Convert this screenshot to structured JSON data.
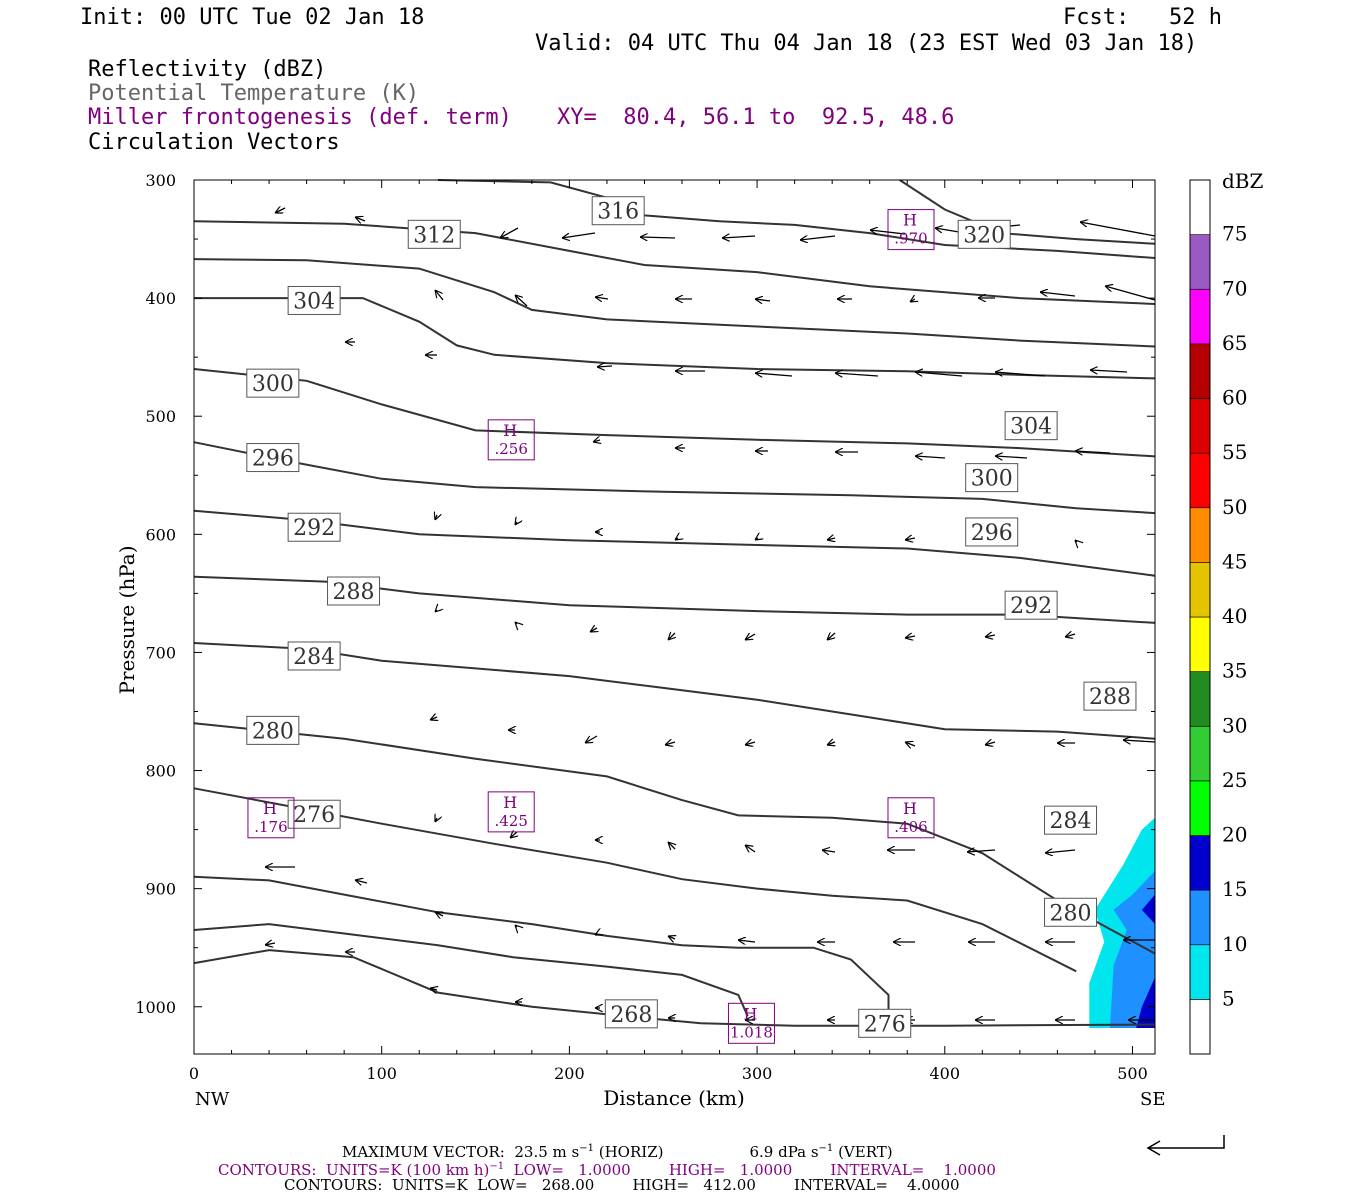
{
  "header": {
    "init": "Init: 00 UTC Tue 02 Jan 18",
    "fcst": "Fcst:   52 h",
    "valid": "Valid: 04 UTC Thu 04 Jan 18 (23 EST Wed 03 Jan 18)",
    "fields": [
      "Reflectivity (dBZ)",
      "Potential Temperature (K)",
      "Miller frontogenesis (def. term)",
      "Circulation Vectors"
    ],
    "xy": "XY=  80.4, 56.1 to  92.5, 48.6"
  },
  "colors": {
    "contour": "#333333",
    "highs": "#800080",
    "dbz": [
      "#ffffff",
      "#00e5ee",
      "#1e90ff",
      "#0000cd",
      "#00ff00",
      "#32cd32",
      "#228b22",
      "#ffff00",
      "#e6c300",
      "#ff8c00",
      "#ff0000",
      "#dc0000",
      "#b40000",
      "#ff00ff",
      "#9b59c4",
      "#ffffff"
    ]
  },
  "chart_data": {
    "type": "contour",
    "xlabel": "Distance (km)",
    "ylabel": "Pressure (hPa)",
    "xlim": [
      0,
      512
    ],
    "ylim": [
      300,
      1040
    ],
    "xticks": [
      0,
      100,
      200,
      300,
      400,
      500
    ],
    "yticks": [
      300,
      400,
      500,
      600,
      700,
      800,
      900,
      1000
    ],
    "x_end_labels": [
      "NW",
      "SE"
    ],
    "colorbar": {
      "unit": "dBZ",
      "levels": [
        5,
        10,
        15,
        20,
        25,
        30,
        35,
        40,
        45,
        50,
        55,
        60,
        65,
        70,
        75
      ]
    },
    "theta_contours": [
      {
        "value": 320,
        "label": "320",
        "label_at": [
          421,
          346
        ],
        "points": [
          [
            376,
            300
          ],
          [
            400,
            325
          ],
          [
            430,
            345
          ],
          [
            470,
            350
          ],
          [
            512,
            354
          ]
        ]
      },
      {
        "value": 316,
        "label": "316",
        "label_at": [
          226,
          326
        ],
        "points": [
          [
            130,
            300
          ],
          [
            190,
            302
          ],
          [
            220,
            315
          ],
          [
            240,
            330
          ],
          [
            280,
            335
          ],
          [
            320,
            338
          ],
          [
            360,
            345
          ],
          [
            400,
            355
          ],
          [
            460,
            360
          ],
          [
            512,
            366
          ]
        ]
      },
      {
        "value": 312,
        "label": "312",
        "label_at": [
          128,
          346
        ],
        "points": [
          [
            0,
            335
          ],
          [
            80,
            337
          ],
          [
            150,
            345
          ],
          [
            200,
            360
          ],
          [
            240,
            372
          ],
          [
            300,
            378
          ],
          [
            360,
            390
          ],
          [
            440,
            400
          ],
          [
            512,
            405
          ]
        ]
      },
      {
        "value": 308,
        "label": "",
        "points": [
          [
            0,
            367
          ],
          [
            60,
            368
          ],
          [
            120,
            375
          ],
          [
            160,
            395
          ],
          [
            180,
            410
          ],
          [
            220,
            418
          ],
          [
            300,
            424
          ],
          [
            380,
            430
          ],
          [
            440,
            436
          ],
          [
            512,
            441
          ]
        ]
      },
      {
        "value": 304,
        "label": "304",
        "label_at": [
          64,
          402
        ],
        "points": [
          [
            0,
            400
          ],
          [
            90,
            400
          ],
          [
            120,
            420
          ],
          [
            140,
            440
          ],
          [
            160,
            448
          ],
          [
            220,
            455
          ],
          [
            300,
            460
          ],
          [
            380,
            462
          ],
          [
            440,
            465
          ],
          [
            512,
            468
          ]
        ]
      },
      {
        "value": 304,
        "label": "304",
        "label_at": [
          446,
          508
        ],
        "points": [
          [
            0,
            460
          ],
          [
            60,
            470
          ],
          [
            100,
            490
          ],
          [
            150,
            512
          ],
          [
            220,
            516
          ],
          [
            300,
            520
          ],
          [
            380,
            523
          ],
          [
            440,
            527
          ],
          [
            512,
            534
          ]
        ]
      },
      {
        "value": 300,
        "label": "300",
        "label_at": [
          42,
          472
        ],
        "points": []
      },
      {
        "value": 300,
        "label": "300",
        "label_at": [
          425,
          552
        ],
        "points": [
          [
            0,
            522
          ],
          [
            50,
            538
          ],
          [
            100,
            553
          ],
          [
            150,
            560
          ],
          [
            250,
            564
          ],
          [
            350,
            567
          ],
          [
            420,
            570
          ],
          [
            470,
            578
          ],
          [
            512,
            582
          ]
        ]
      },
      {
        "value": 296,
        "label": "296",
        "label_at": [
          42,
          535
        ],
        "points": []
      },
      {
        "value": 296,
        "label": "296",
        "label_at": [
          425,
          598
        ],
        "points": [
          [
            0,
            580
          ],
          [
            60,
            588
          ],
          [
            120,
            600
          ],
          [
            200,
            605
          ],
          [
            300,
            609
          ],
          [
            380,
            612
          ],
          [
            440,
            620
          ],
          [
            512,
            635
          ]
        ]
      },
      {
        "value": 292,
        "label": "292",
        "label_at": [
          64,
          594
        ],
        "points": []
      },
      {
        "value": 292,
        "label": "292",
        "label_at": [
          446,
          660
        ],
        "points": [
          [
            0,
            636
          ],
          [
            70,
            640
          ],
          [
            120,
            650
          ],
          [
            200,
            660
          ],
          [
            300,
            665
          ],
          [
            380,
            668
          ],
          [
            440,
            668
          ],
          [
            512,
            675
          ]
        ]
      },
      {
        "value": 288,
        "label": "288",
        "label_at": [
          85,
          648
        ],
        "points": []
      },
      {
        "value": 288,
        "label": "288",
        "label_at": [
          488,
          737
        ],
        "points": [
          [
            0,
            692
          ],
          [
            60,
            697
          ],
          [
            100,
            707
          ],
          [
            200,
            720
          ],
          [
            250,
            730
          ],
          [
            300,
            740
          ],
          [
            360,
            755
          ],
          [
            400,
            765
          ],
          [
            460,
            767
          ],
          [
            512,
            773
          ]
        ]
      },
      {
        "value": 284,
        "label": "284",
        "label_at": [
          64,
          703
        ],
        "points": []
      },
      {
        "value": 284,
        "label": "284",
        "label_at": [
          467,
          842
        ],
        "points": [
          [
            0,
            760
          ],
          [
            80,
            773
          ],
          [
            150,
            790
          ],
          [
            220,
            805
          ],
          [
            260,
            825
          ],
          [
            290,
            838
          ],
          [
            340,
            840
          ],
          [
            380,
            845
          ],
          [
            420,
            870
          ],
          [
            460,
            910
          ],
          [
            512,
            955
          ]
        ]
      },
      {
        "value": 280,
        "label": "280",
        "label_at": [
          42,
          766
        ],
        "points": []
      },
      {
        "value": 280,
        "label": "280",
        "label_at": [
          467,
          920
        ],
        "points": [
          [
            0,
            815
          ],
          [
            60,
            833
          ],
          [
            100,
            845
          ],
          [
            160,
            862
          ],
          [
            220,
            878
          ],
          [
            260,
            892
          ],
          [
            300,
            900
          ],
          [
            340,
            906
          ],
          [
            380,
            910
          ],
          [
            420,
            930
          ],
          [
            470,
            970
          ]
        ]
      },
      {
        "value": 276,
        "label": "276",
        "label_at": [
          64,
          837
        ],
        "points": []
      },
      {
        "value": 276,
        "label": "276",
        "label_at": [
          368,
          1014
        ],
        "points": [
          [
            0,
            890
          ],
          [
            40,
            893
          ],
          [
            80,
            905
          ],
          [
            130,
            920
          ],
          [
            180,
            930
          ],
          [
            220,
            940
          ],
          [
            260,
            948
          ],
          [
            290,
            950
          ],
          [
            330,
            950
          ],
          [
            350,
            960
          ],
          [
            370,
            990
          ],
          [
            370,
            1015
          ]
        ]
      },
      {
        "value": 272,
        "label": "",
        "points": [
          [
            0,
            935
          ],
          [
            40,
            930
          ],
          [
            80,
            938
          ],
          [
            130,
            948
          ],
          [
            170,
            958
          ],
          [
            220,
            966
          ],
          [
            260,
            973
          ],
          [
            290,
            990
          ],
          [
            295,
            1008
          ]
        ]
      },
      {
        "value": 268,
        "label": "268",
        "label_at": [
          233,
          1006
        ],
        "points": [
          [
            0,
            963
          ],
          [
            40,
            952
          ],
          [
            85,
            958
          ],
          [
            130,
            988
          ],
          [
            180,
            1000
          ],
          [
            230,
            1008
          ],
          [
            270,
            1014
          ],
          [
            320,
            1016
          ],
          [
            400,
            1016
          ],
          [
            512,
            1015
          ]
        ]
      }
    ],
    "frontogenesis_highs": [
      {
        "label": "H",
        "value": ".970",
        "at": [
          382,
          342
        ]
      },
      {
        "label": "H",
        "value": ".256",
        "at": [
          169,
          520
        ]
      },
      {
        "label": "H",
        "value": ".425",
        "at": [
          169,
          835
        ]
      },
      {
        "label": "H",
        "value": ".176",
        "at": [
          41,
          840
        ]
      },
      {
        "label": "H",
        "value": ".406",
        "at": [
          382,
          840
        ]
      },
      {
        "label": "H",
        "value": "1.018",
        "at": [
          297,
          1014
        ]
      }
    ],
    "reflectivity_region": {
      "description_levels": [
        5,
        10,
        15
      ],
      "x_range": [
        477,
        512
      ],
      "p_range": [
        840,
        1020
      ]
    }
  },
  "footer": {
    "max_vector": "MAXIMUM VECTOR:  23.5 m s",
    "max_vector_sup": "−1",
    "max_vector_horiz": " (HORIZ)",
    "max_vector_vert": "6.9 dPa s",
    "max_vector_vert_sup": "−1",
    "max_vector_vert_tail": " (VERT)",
    "contours1_a": "CONTOURS:  UNITS=K (100 km h)",
    "contours1_sup": "−1",
    "contours1_b": "  LOW=   1.0000        HIGH=   1.0000        INTERVAL=    1.0000",
    "contours2": "CONTOURS:  UNITS=K  LOW=   268.00        HIGH=   412.00        INTERVAL=    4.0000"
  }
}
